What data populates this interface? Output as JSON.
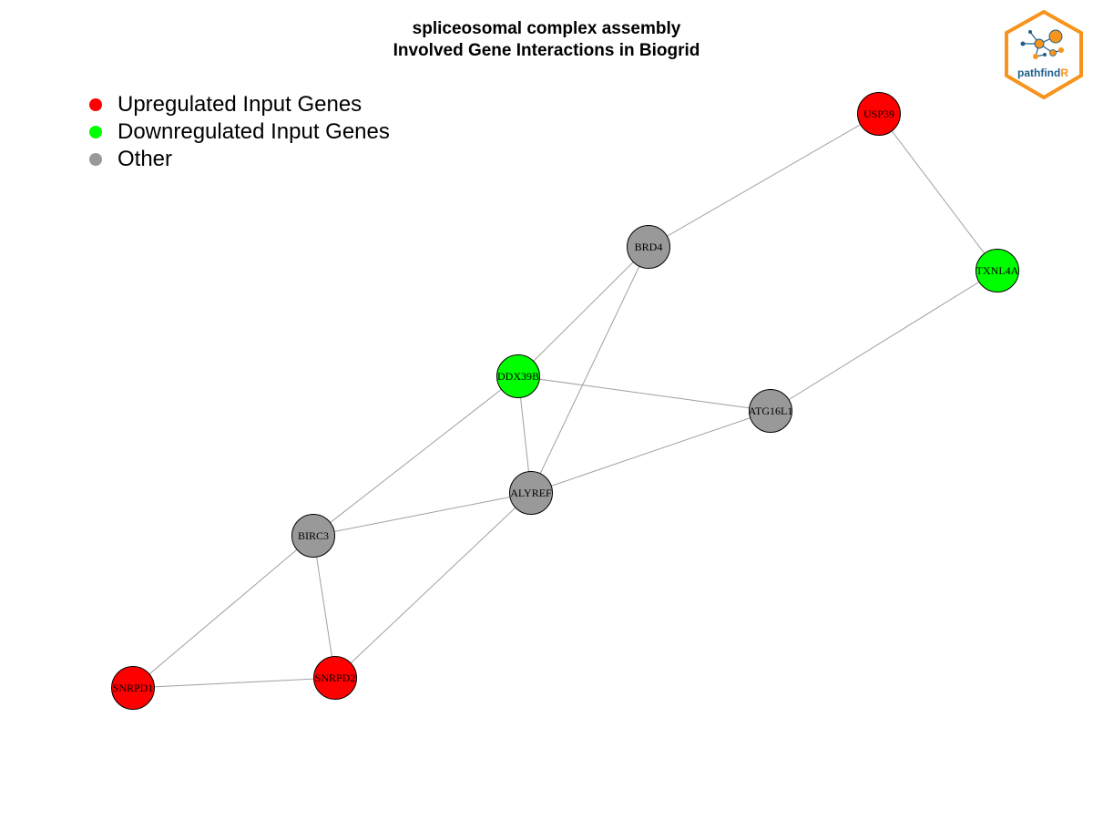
{
  "title": {
    "line1": "spliceosomal complex assembly",
    "line2": "Involved Gene Interactions in Biogrid"
  },
  "legend": [
    {
      "label": "Upregulated Input Genes",
      "color": "#ff0000"
    },
    {
      "label": "Downregulated Input Genes",
      "color": "#00ff00"
    },
    {
      "label": "Other",
      "color": "#999999"
    }
  ],
  "logo": {
    "text_a": "pathfind",
    "text_b": "R"
  },
  "nodes": [
    {
      "id": "USP39",
      "status": "up"
    },
    {
      "id": "TXNL4A",
      "status": "down"
    },
    {
      "id": "BRD4",
      "status": "other"
    },
    {
      "id": "DDX39B",
      "status": "down"
    },
    {
      "id": "ATG16L1",
      "status": "other"
    },
    {
      "id": "ALYREF",
      "status": "other"
    },
    {
      "id": "BIRC3",
      "status": "other"
    },
    {
      "id": "SNRPD1",
      "status": "up"
    },
    {
      "id": "SNRPD2",
      "status": "up"
    }
  ],
  "edges": [
    [
      "USP39",
      "BRD4"
    ],
    [
      "USP39",
      "TXNL4A"
    ],
    [
      "TXNL4A",
      "ATG16L1"
    ],
    [
      "BRD4",
      "DDX39B"
    ],
    [
      "BRD4",
      "ALYREF"
    ],
    [
      "DDX39B",
      "ATG16L1"
    ],
    [
      "DDX39B",
      "ALYREF"
    ],
    [
      "DDX39B",
      "BIRC3"
    ],
    [
      "ATG16L1",
      "ALYREF"
    ],
    [
      "ALYREF",
      "BIRC3"
    ],
    [
      "ALYREF",
      "SNRPD2"
    ],
    [
      "BIRC3",
      "SNRPD2"
    ],
    [
      "BIRC3",
      "SNRPD1"
    ],
    [
      "SNRPD1",
      "SNRPD2"
    ]
  ],
  "colors": {
    "up": "#ff0000",
    "down": "#00ff00",
    "other": "#999999",
    "edge": "#a0a0a0",
    "logo_orange": "#f7941d",
    "logo_blue": "#1f5f8b"
  }
}
